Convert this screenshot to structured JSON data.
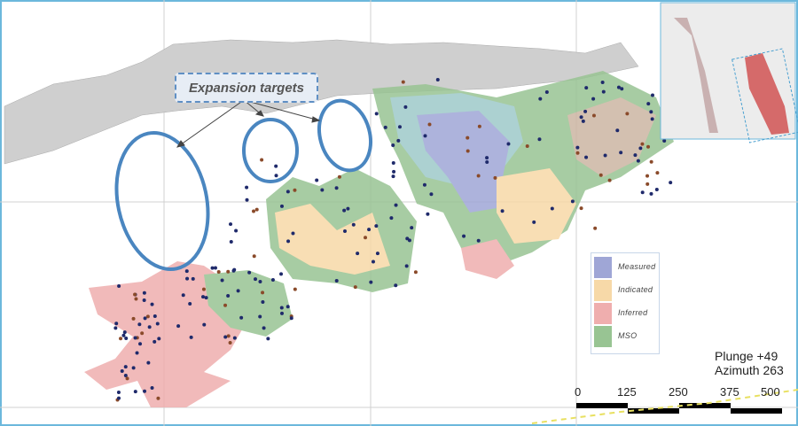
{
  "callout": {
    "label": "Expansion targets"
  },
  "legend": {
    "items": [
      {
        "label": "Measured",
        "color": "#9fa6d6"
      },
      {
        "label": "Indicated",
        "color": "#f7d9a8"
      },
      {
        "label": "Inferred",
        "color": "#efaeae"
      },
      {
        "label": "MSO",
        "color": "#98c493"
      }
    ]
  },
  "orientation": {
    "plunge": "Plunge +49",
    "azimuth": "Azimuth 263"
  },
  "scale_bar": {
    "ticks": [
      "0",
      "125",
      "250",
      "375",
      "500"
    ]
  },
  "colors": {
    "frame": "#6cb8dc",
    "target_ellipse": "#4a86c0",
    "drillhole": "#1f2a6b",
    "topography": "#cfcfcf"
  }
}
